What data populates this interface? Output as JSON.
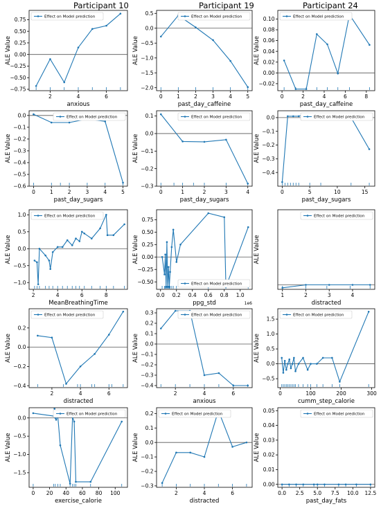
{
  "column_titles": [
    "Participant 10",
    "Participant 19",
    "Participant 24"
  ],
  "legend_label": "Effect on Model prediction",
  "ylabel": "ALE Value",
  "colors": {
    "line": "#1f77b4",
    "zero": "#555555",
    "axis": "#000000"
  },
  "chart_data": [
    {
      "type": "line",
      "xlabel": "anxious",
      "legend_pos": "top-left",
      "xlim": [
        0.5,
        7.5
      ],
      "ylim": [
        -0.78,
        0.95
      ],
      "xticks": [
        2,
        4,
        6
      ],
      "yticks": [
        -0.75,
        -0.5,
        -0.25,
        0.0,
        0.25,
        0.5,
        0.75
      ],
      "x": [
        1,
        2,
        3,
        4,
        5,
        6,
        7
      ],
      "y": [
        -0.68,
        -0.1,
        -0.6,
        0.15,
        0.55,
        0.62,
        0.88
      ],
      "rug": [
        1,
        2,
        3,
        4,
        5,
        6,
        7
      ]
    },
    {
      "type": "line",
      "xlabel": "past_day_caffeine",
      "legend_pos": "top-right",
      "xlim": [
        -0.25,
        5.25
      ],
      "ylim": [
        -2.1,
        0.6
      ],
      "xticks": [
        0,
        1,
        2,
        3,
        4,
        5
      ],
      "yticks": [
        -2.0,
        -1.5,
        -1.0,
        -0.5,
        0.0,
        0.5
      ],
      "x": [
        0,
        1,
        2,
        3,
        4,
        5
      ],
      "y": [
        -0.28,
        0.43,
        0.03,
        -0.4,
        -1.1,
        -1.98
      ],
      "rug": [
        0,
        1,
        2,
        3,
        4,
        5
      ]
    },
    {
      "type": "line",
      "xlabel": "past_day_caffeine",
      "legend_pos": "top-left",
      "xlim": [
        -0.4,
        8.8
      ],
      "ylim": [
        -0.033,
        0.116
      ],
      "xticks": [
        0,
        2,
        4,
        6,
        8
      ],
      "yticks": [
        -0.02,
        0.0,
        0.02,
        0.04,
        0.06,
        0.08,
        0.1
      ],
      "x": [
        0.2,
        1.3,
        2.3,
        3.3,
        4.3,
        5.3,
        6.4,
        8.3
      ],
      "y": [
        0.023,
        -0.03,
        -0.03,
        0.072,
        0.053,
        -0.001,
        0.108,
        0.052
      ],
      "rug": [
        0.2,
        1.3,
        2.3,
        3.3,
        4.3,
        5.3,
        6.4,
        8.3
      ]
    },
    {
      "type": "line",
      "xlabel": "past_day_sugars",
      "legend_pos": "top-right",
      "xlim": [
        -0.25,
        5.25
      ],
      "ylim": [
        -0.6,
        0.04
      ],
      "xticks": [
        0,
        1,
        2,
        3,
        4,
        5
      ],
      "yticks": [
        -0.6,
        -0.5,
        -0.4,
        -0.3,
        -0.2,
        -0.1,
        0.0
      ],
      "x": [
        0,
        1,
        2,
        3,
        4,
        5
      ],
      "y": [
        0.01,
        -0.06,
        -0.06,
        -0.03,
        -0.05,
        -0.57
      ],
      "rug": [
        0,
        1,
        1.5,
        2,
        3,
        4,
        5
      ]
    },
    {
      "type": "line",
      "xlabel": "past_day_sugars",
      "legend_pos": "top-right",
      "xlim": [
        -0.2,
        4.2
      ],
      "ylim": [
        -0.3,
        0.13
      ],
      "xticks": [
        0,
        1,
        2,
        3,
        4
      ],
      "yticks": [
        -0.3,
        -0.2,
        -0.1,
        0.0,
        0.1
      ],
      "x": [
        0,
        1,
        2,
        3,
        4
      ],
      "y": [
        0.11,
        -0.045,
        -0.047,
        -0.035,
        -0.285
      ],
      "rug": [
        0,
        0.6,
        1,
        1.5,
        2,
        3,
        4
      ]
    },
    {
      "type": "line",
      "xlabel": "past_day_sugars",
      "legend_pos": "top-right",
      "xlim": [
        -0.8,
        16.8
      ],
      "ylim": [
        -0.5,
        0.05
      ],
      "xticks": [
        0,
        5,
        10,
        15
      ],
      "yticks": [
        -0.4,
        -0.3,
        -0.2,
        -0.1,
        0.0
      ],
      "x": [
        0,
        1,
        2,
        3,
        4,
        5,
        7,
        12.5,
        15.8
      ],
      "y": [
        -0.47,
        0.01,
        0.01,
        0.01,
        0.02,
        0.0,
        0.0,
        0.0,
        -0.23
      ],
      "rug": [
        0,
        0.5,
        1,
        1.5,
        2,
        2.5,
        3,
        5,
        7,
        12.5,
        15.8
      ]
    },
    {
      "type": "line",
      "xlabel": "MeanBreathingTime",
      "legend_pos": "top-left",
      "xlim": [
        1.65,
        9.75
      ],
      "ylim": [
        -1.2,
        1.15
      ],
      "xticks": [
        2,
        4,
        6,
        8
      ],
      "yticks": [
        -1.0,
        -0.5,
        0.0,
        0.5,
        1.0
      ],
      "x": [
        2.1,
        2.3,
        2.4,
        2.5,
        3.0,
        3.3,
        3.4,
        3.6,
        4.0,
        4.4,
        4.8,
        5.2,
        5.5,
        5.8,
        6.0,
        6.2,
        6.8,
        7.5,
        8.0,
        8.1,
        8.6,
        9.5
      ],
      "y": [
        -0.35,
        -0.4,
        -1.05,
        0.0,
        -0.2,
        -0.35,
        -0.6,
        -0.1,
        0.05,
        0.05,
        0.25,
        0.1,
        0.3,
        0.22,
        0.5,
        0.45,
        0.3,
        0.6,
        1.0,
        0.4,
        0.4,
        0.72
      ],
      "rug": [
        2.1,
        2.3,
        2.5,
        3.0,
        3.3,
        3.6,
        4.0,
        4.4,
        4.8,
        5.2,
        5.5,
        5.8,
        6.2,
        6.8,
        7.5,
        8.0,
        8.6,
        9.5
      ]
    },
    {
      "type": "line",
      "xlabel": "ppg_std",
      "offset_label": "1e6",
      "legend_pos": "bottom-right",
      "xlim": [
        -0.05,
        1.15
      ],
      "ylim": [
        -0.65,
        0.95
      ],
      "xticks": [
        0.0,
        0.2,
        0.4,
        0.6,
        0.8,
        1.0
      ],
      "yticks": [
        -0.5,
        -0.25,
        0.0,
        0.25,
        0.5,
        0.75
      ],
      "x": [
        0.02,
        0.05,
        0.06,
        0.07,
        0.08,
        0.09,
        0.1,
        0.11,
        0.12,
        0.14,
        0.16,
        0.2,
        0.25,
        0.6,
        0.8,
        0.82,
        1.1
      ],
      "y": [
        0.0,
        -0.35,
        0.05,
        -0.6,
        0.3,
        -0.6,
        -0.2,
        -0.6,
        -0.3,
        0.2,
        0.55,
        -0.1,
        0.25,
        0.88,
        0.8,
        -0.6,
        0.6
      ],
      "rug": [
        0.02,
        0.05,
        0.06,
        0.07,
        0.08,
        0.09,
        0.1,
        0.11,
        0.12,
        0.14,
        0.16,
        0.2,
        0.6,
        0.82,
        1.1
      ]
    },
    {
      "type": "line",
      "xlabel": "distracted",
      "legend_pos": "top-right",
      "xlim": [
        0.8,
        4.95
      ],
      "ylim": [
        -0.003,
        0.05
      ],
      "xticks": [
        1,
        2,
        3,
        4
      ],
      "yticks": [],
      "x": [
        1,
        2,
        3,
        4,
        4.75
      ],
      "y": [
        -0.002,
        0.0,
        0.0,
        0.0,
        0.0
      ],
      "rug": [
        1,
        2,
        2.9,
        3.9,
        4.75
      ]
    },
    {
      "type": "line",
      "xlabel": "distracted",
      "legend_pos": "top-left",
      "xlim": [
        0.4,
        7.3
      ],
      "ylim": [
        -0.42,
        0.4
      ],
      "xticks": [
        2,
        4,
        6
      ],
      "yticks": [
        -0.4,
        -0.2,
        0.0,
        0.2
      ],
      "x": [
        1,
        2,
        3,
        4,
        5,
        6,
        7
      ],
      "y": [
        0.12,
        0.1,
        -0.38,
        -0.2,
        -0.07,
        0.13,
        0.37
      ],
      "rug": [
        1,
        2.8,
        3.8,
        4,
        4.8,
        5,
        6,
        6.2,
        7
      ]
    },
    {
      "type": "line",
      "xlabel": "anxious",
      "legend_pos": "top-right",
      "xlim": [
        0.7,
        7.3
      ],
      "ylim": [
        -0.42,
        0.34
      ],
      "xticks": [
        2,
        4,
        6
      ],
      "yticks": [
        -0.4,
        -0.3,
        -0.2,
        -0.1,
        0.0,
        0.1,
        0.2,
        0.3
      ],
      "x": [
        1,
        2,
        3,
        4,
        5,
        6,
        7
      ],
      "y": [
        0.15,
        0.32,
        0.32,
        -0.3,
        -0.28,
        -0.4,
        -0.4
      ],
      "rug": [
        1,
        2,
        3,
        4,
        5,
        6,
        7
      ]
    },
    {
      "type": "line",
      "xlabel": "cumm_step_calorie",
      "legend_pos": "top-left",
      "xlim": [
        -8,
        310
      ],
      "ylim": [
        -0.8,
        1.85
      ],
      "xticks": [
        0,
        100,
        200,
        300
      ],
      "yticks": [
        -0.5,
        0.0,
        0.5,
        1.0,
        1.5
      ],
      "x": [
        5,
        10,
        15,
        20,
        25,
        30,
        35,
        40,
        45,
        50,
        60,
        75,
        90,
        100,
        120,
        140,
        170,
        195,
        290
      ],
      "y": [
        0.2,
        -0.3,
        0.1,
        -0.2,
        0.0,
        0.15,
        -0.15,
        0.0,
        0.2,
        -0.25,
        0.0,
        0.2,
        -0.2,
        0.0,
        0.0,
        0.2,
        0.2,
        -0.6,
        1.75
      ],
      "rug": [
        5,
        10,
        15,
        20,
        25,
        30,
        35,
        40,
        45,
        50,
        60,
        75,
        90,
        100,
        120,
        140,
        170,
        195,
        290
      ]
    },
    {
      "type": "line",
      "xlabel": "exercise_calorie",
      "legend_pos": "top-right",
      "xlim": [
        -5,
        115
      ],
      "ylim": [
        -1.9,
        0.28
      ],
      "xticks": [
        0,
        20,
        40,
        60,
        80,
        100
      ],
      "yticks": [
        -1.5,
        -1.0,
        -0.5,
        0.0
      ],
      "x": [
        0,
        25,
        26,
        27,
        28,
        30,
        33,
        45,
        48,
        50,
        52,
        70,
        108
      ],
      "y": [
        0.13,
        0.05,
        0.25,
        0.0,
        -0.05,
        0.05,
        -0.75,
        -1.8,
        0.02,
        -0.1,
        -1.75,
        -1.75,
        -0.1
      ],
      "rug": [
        0,
        25,
        27,
        30,
        33,
        45,
        48,
        50,
        52,
        70,
        108
      ]
    },
    {
      "type": "line",
      "xlabel": "distracted",
      "legend_pos": "top-left",
      "xlim": [
        0.6,
        7.4
      ],
      "ylim": [
        -0.31,
        0.24
      ],
      "xticks": [
        2,
        4,
        6
      ],
      "yticks": [
        -0.3,
        -0.2,
        -0.1,
        0.0,
        0.1,
        0.2
      ],
      "x": [
        1,
        2,
        3,
        4,
        5,
        6,
        7
      ],
      "y": [
        -0.28,
        -0.07,
        -0.07,
        -0.1,
        0.22,
        -0.03,
        0.0
      ],
      "rug": [
        1,
        2,
        3,
        4,
        5,
        6,
        7
      ]
    },
    {
      "type": "line",
      "xlabel": "past_day_fats",
      "legend_pos": "top-right",
      "xlim": [
        -0.6,
        13.1
      ],
      "ylim": [
        -0.002,
        0.052
      ],
      "xticks": [
        0.0,
        2.5,
        5.0,
        7.5,
        10.0,
        12.5
      ],
      "yticks": [
        0.0,
        0.01,
        0.02,
        0.03,
        0.04,
        0.05
      ],
      "x": [
        0,
        1,
        2,
        3,
        4.5,
        5,
        6,
        8,
        9,
        10.5,
        12.5
      ],
      "y": [
        0,
        0,
        0,
        0,
        0,
        0,
        0,
        0,
        0,
        0,
        0
      ],
      "rug": [
        0,
        1,
        2,
        3,
        4.5,
        5,
        6,
        8,
        9,
        10.5,
        12.5
      ]
    }
  ]
}
